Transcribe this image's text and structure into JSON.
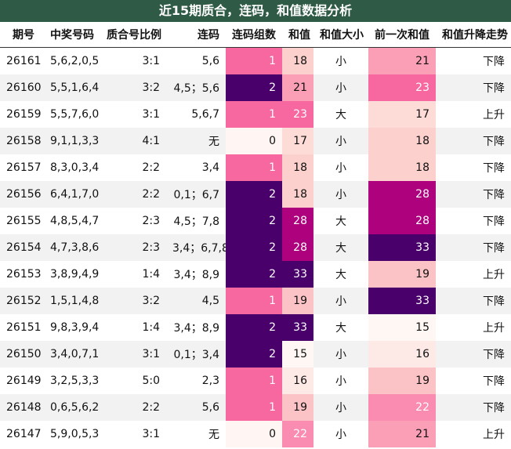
{
  "title": "近15期质合，连码，和值数据分析",
  "headers": [
    "期号",
    "中奖号码",
    "质合号比例",
    "连码",
    "连码组数",
    "和值",
    "和值大小",
    "前一次和值",
    "和值升降走势"
  ],
  "colors": {
    "title_bg": "#2f5b46",
    "lianma_0": "#fff5f2",
    "lianma_1": "#f768a1",
    "lianma_2": "#49006a",
    "hezhi_15": "#fff7f3",
    "hezhi_16": "#fde9e6",
    "hezhi_17": "#fddbd7",
    "hezhi_18": "#fcd0cd",
    "hezhi_19": "#fbc3c5",
    "hezhi_21": "#fa9fb5",
    "hezhi_22": "#f98cb0",
    "hezhi_23": "#f768a1",
    "hezhi_28": "#ae017e",
    "hezhi_33": "#49006a"
  },
  "rows": [
    {
      "qihao": "26161",
      "haoma": "5,6,2,0,5",
      "bili": "3:1",
      "lianma": "5,6",
      "zushu": "1",
      "hezhi": "18",
      "daxiao": "小",
      "qian": "21",
      "zoushi": "下降"
    },
    {
      "qihao": "26160",
      "haoma": "5,5,1,6,4",
      "bili": "3:2",
      "lianma": "4,5；5,6",
      "zushu": "2",
      "hezhi": "21",
      "daxiao": "小",
      "qian": "23",
      "zoushi": "下降"
    },
    {
      "qihao": "26159",
      "haoma": "5,5,7,6,0",
      "bili": "3:1",
      "lianma": "5,6,7",
      "zushu": "1",
      "hezhi": "23",
      "daxiao": "大",
      "qian": "17",
      "zoushi": "上升"
    },
    {
      "qihao": "26158",
      "haoma": "9,1,1,3,3",
      "bili": "4:1",
      "lianma": "无",
      "zushu": "0",
      "hezhi": "17",
      "daxiao": "小",
      "qian": "18",
      "zoushi": "下降"
    },
    {
      "qihao": "26157",
      "haoma": "8,3,0,3,4",
      "bili": "2:2",
      "lianma": "3,4",
      "zushu": "1",
      "hezhi": "18",
      "daxiao": "小",
      "qian": "18",
      "zoushi": "下降"
    },
    {
      "qihao": "26156",
      "haoma": "6,4,1,7,0",
      "bili": "2:2",
      "lianma": "0,1；6,7",
      "zushu": "2",
      "hezhi": "18",
      "daxiao": "小",
      "qian": "28",
      "zoushi": "下降"
    },
    {
      "qihao": "26155",
      "haoma": "4,8,5,4,7",
      "bili": "2:3",
      "lianma": "4,5；7,8",
      "zushu": "2",
      "hezhi": "28",
      "daxiao": "大",
      "qian": "28",
      "zoushi": "下降"
    },
    {
      "qihao": "26154",
      "haoma": "4,7,3,8,6",
      "bili": "2:3",
      "lianma": "3,4；6,7,8",
      "zushu": "2",
      "hezhi": "28",
      "daxiao": "大",
      "qian": "33",
      "zoushi": "下降"
    },
    {
      "qihao": "26153",
      "haoma": "3,8,9,4,9",
      "bili": "1:4",
      "lianma": "3,4；8,9",
      "zushu": "2",
      "hezhi": "33",
      "daxiao": "大",
      "qian": "19",
      "zoushi": "上升"
    },
    {
      "qihao": "26152",
      "haoma": "1,5,1,4,8",
      "bili": "3:2",
      "lianma": "4,5",
      "zushu": "1",
      "hezhi": "19",
      "daxiao": "小",
      "qian": "33",
      "zoushi": "下降"
    },
    {
      "qihao": "26151",
      "haoma": "9,8,3,9,4",
      "bili": "1:4",
      "lianma": "3,4；8,9",
      "zushu": "2",
      "hezhi": "33",
      "daxiao": "大",
      "qian": "15",
      "zoushi": "上升"
    },
    {
      "qihao": "26150",
      "haoma": "3,4,0,7,1",
      "bili": "3:1",
      "lianma": "0,1；3,4",
      "zushu": "2",
      "hezhi": "15",
      "daxiao": "小",
      "qian": "16",
      "zoushi": "下降"
    },
    {
      "qihao": "26149",
      "haoma": "3,2,5,3,3",
      "bili": "5:0",
      "lianma": "2,3",
      "zushu": "1",
      "hezhi": "16",
      "daxiao": "小",
      "qian": "19",
      "zoushi": "下降"
    },
    {
      "qihao": "26148",
      "haoma": "0,6,5,6,2",
      "bili": "2:2",
      "lianma": "5,6",
      "zushu": "1",
      "hezhi": "19",
      "daxiao": "小",
      "qian": "22",
      "zoushi": "下降"
    },
    {
      "qihao": "26147",
      "haoma": "5,9,0,5,3",
      "bili": "3:1",
      "lianma": "无",
      "zushu": "0",
      "hezhi": "22",
      "daxiao": "小",
      "qian": "21",
      "zoushi": "上升"
    }
  ]
}
